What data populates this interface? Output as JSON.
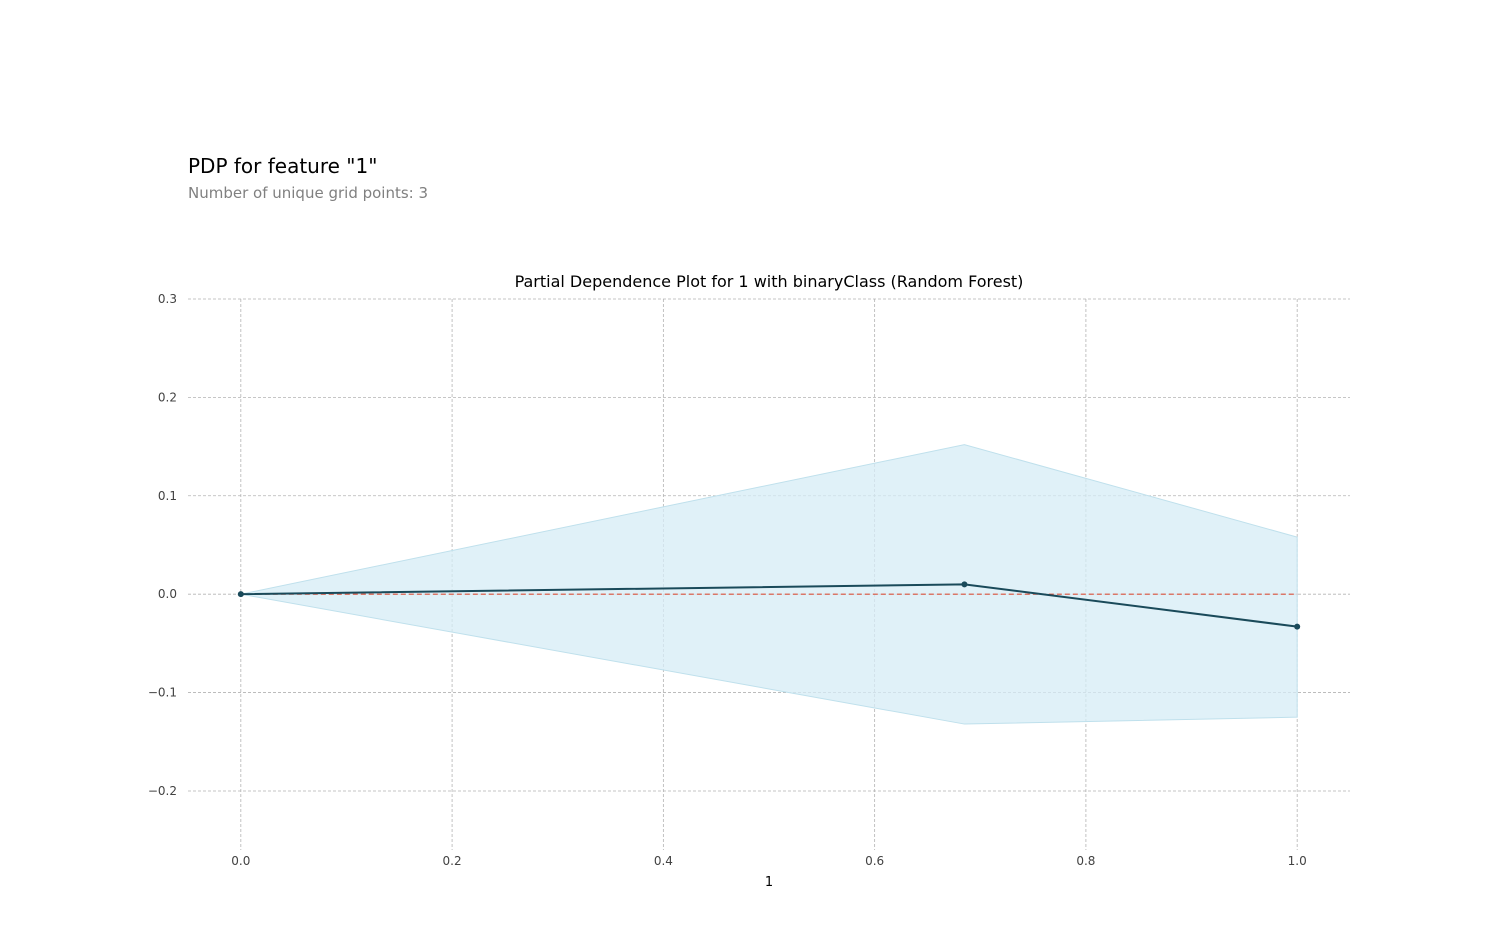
{
  "header": {
    "title": "PDP for feature \"1\"",
    "subtitle": "Number of unique grid points: 3"
  },
  "chart_data": {
    "type": "line",
    "title": "Partial Dependence Plot for 1 with binaryClass (Random Forest)",
    "xlabel": "1",
    "ylabel": "",
    "xlim": [
      -0.05,
      1.05
    ],
    "ylim": [
      -0.26,
      0.3
    ],
    "x_ticks": [
      0.0,
      0.2,
      0.4,
      0.6,
      0.8,
      1.0
    ],
    "x_tick_labels": [
      "0.0",
      "0.2",
      "0.4",
      "0.6",
      "0.8",
      "1.0"
    ],
    "y_ticks": [
      -0.2,
      -0.1,
      0.0,
      0.1,
      0.2,
      0.3
    ],
    "y_tick_labels": [
      "−0.2",
      "−0.1",
      "0.0",
      "0.1",
      "0.2",
      "0.3"
    ],
    "grid": true,
    "x": [
      0.0,
      0.685,
      1.0
    ],
    "series": [
      {
        "values": [
          0.0,
          0.01,
          -0.033
        ],
        "upper": [
          0.0,
          0.152,
          0.058
        ],
        "lower": [
          0.0,
          -0.132,
          -0.125
        ],
        "color": "#1a4a5a",
        "band_color": "#d5ecf5"
      }
    ],
    "baseline": {
      "y": 0.0,
      "color": "#d9503a"
    },
    "grid_color": "#b3b3b3"
  }
}
